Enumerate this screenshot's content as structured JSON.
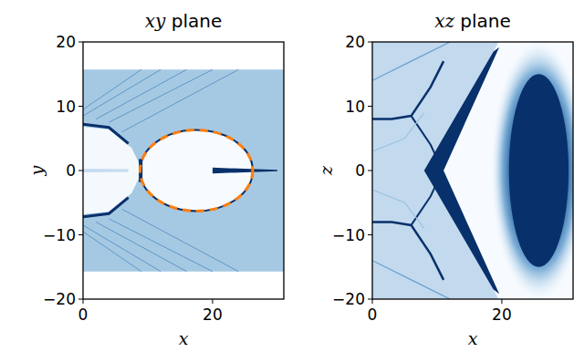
{
  "chart_data": [
    {
      "type": "image",
      "title": "xy plane",
      "x_label": "x",
      "y_label": "y",
      "xlim": [
        0,
        31
      ],
      "ylim": [
        -20,
        20
      ],
      "xticks": [
        0,
        20
      ],
      "yticks": [
        {
          "value": -20,
          "label": "−20"
        },
        {
          "value": -10,
          "label": "−10"
        },
        0,
        10,
        20
      ],
      "ellipse": {
        "cx": 17.5,
        "cy": 0,
        "rx": 8.7,
        "ry": 6.3,
        "color": "#ff7f0e",
        "line_style": "dashed"
      }
    },
    {
      "type": "image",
      "title": "xz plane",
      "x_label": "x",
      "y_label": "z",
      "xlim": [
        0,
        31
      ],
      "ylim": [
        -20,
        20
      ],
      "xticks": [
        0,
        20
      ],
      "yticks": [
        {
          "value": -20,
          "label": "−20"
        },
        {
          "value": -10,
          "label": "−10"
        },
        0,
        10,
        20
      ]
    }
  ]
}
